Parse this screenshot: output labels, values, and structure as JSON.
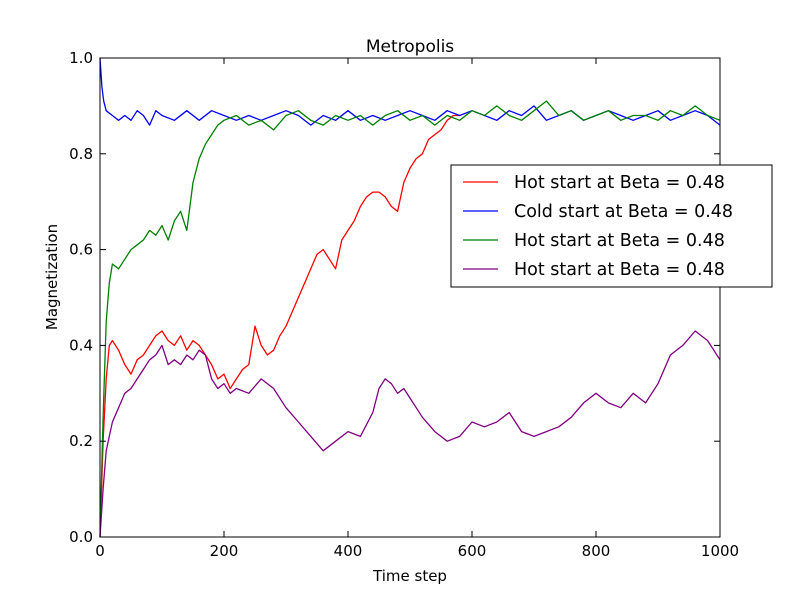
{
  "chart_data": {
    "type": "line",
    "title": "Metropolis",
    "xlabel": "Time step",
    "ylabel": "Magnetization",
    "xlim": [
      0,
      1000
    ],
    "ylim": [
      0.0,
      1.0
    ],
    "xticks": [
      0,
      200,
      400,
      600,
      800,
      1000
    ],
    "yticks": [
      0.0,
      0.2,
      0.4,
      0.6,
      0.8,
      1.0
    ],
    "xtick_labels": [
      "0",
      "200",
      "400",
      "600",
      "800",
      "1000"
    ],
    "ytick_labels": [
      "0.0",
      "0.2",
      "0.4",
      "0.6",
      "0.8",
      "1.0"
    ],
    "grid": false,
    "legend_position": "upper-right",
    "series": [
      {
        "name": "Hot start at Beta = 0.48",
        "color": "#ff0000",
        "x": [
          0,
          5,
          10,
          15,
          20,
          30,
          40,
          50,
          60,
          70,
          80,
          90,
          100,
          110,
          120,
          130,
          140,
          150,
          160,
          170,
          180,
          190,
          200,
          210,
          220,
          230,
          240,
          250,
          260,
          270,
          280,
          290,
          300,
          310,
          320,
          330,
          340,
          350,
          360,
          370,
          380,
          390,
          400,
          410,
          420,
          430,
          440,
          450,
          460,
          470,
          480,
          490,
          500,
          510,
          520,
          530,
          540,
          550,
          560,
          570,
          580
        ],
        "y": [
          0.0,
          0.2,
          0.33,
          0.4,
          0.41,
          0.39,
          0.36,
          0.34,
          0.37,
          0.38,
          0.4,
          0.42,
          0.43,
          0.41,
          0.4,
          0.42,
          0.39,
          0.41,
          0.4,
          0.38,
          0.36,
          0.33,
          0.34,
          0.31,
          0.33,
          0.35,
          0.36,
          0.44,
          0.4,
          0.38,
          0.39,
          0.42,
          0.44,
          0.47,
          0.5,
          0.53,
          0.56,
          0.59,
          0.6,
          0.58,
          0.56,
          0.62,
          0.64,
          0.66,
          0.69,
          0.71,
          0.72,
          0.72,
          0.71,
          0.69,
          0.68,
          0.74,
          0.77,
          0.79,
          0.8,
          0.83,
          0.84,
          0.85,
          0.87,
          0.88,
          0.88
        ]
      },
      {
        "name": "Cold start at Beta = 0.48",
        "color": "#0000ff",
        "x": [
          0,
          3,
          6,
          10,
          20,
          30,
          40,
          50,
          60,
          70,
          80,
          90,
          100,
          120,
          140,
          160,
          180,
          200,
          220,
          240,
          260,
          280,
          300,
          320,
          340,
          360,
          380,
          400,
          420,
          440,
          460,
          480,
          500,
          520,
          540,
          560,
          580,
          600,
          620,
          640,
          660,
          680,
          700,
          720,
          740,
          760,
          780,
          800,
          820,
          840,
          860,
          880,
          900,
          920,
          940,
          960,
          980,
          1000
        ],
        "y": [
          1.0,
          0.94,
          0.91,
          0.89,
          0.88,
          0.87,
          0.88,
          0.87,
          0.89,
          0.88,
          0.86,
          0.89,
          0.88,
          0.87,
          0.89,
          0.87,
          0.89,
          0.88,
          0.87,
          0.88,
          0.87,
          0.88,
          0.89,
          0.88,
          0.86,
          0.88,
          0.87,
          0.89,
          0.87,
          0.88,
          0.87,
          0.88,
          0.89,
          0.88,
          0.87,
          0.89,
          0.88,
          0.89,
          0.88,
          0.87,
          0.89,
          0.88,
          0.9,
          0.87,
          0.88,
          0.89,
          0.87,
          0.88,
          0.89,
          0.88,
          0.87,
          0.88,
          0.89,
          0.87,
          0.88,
          0.89,
          0.88,
          0.86
        ]
      },
      {
        "name": "Hot start at Beta = 0.48",
        "color": "#008000",
        "x": [
          0,
          5,
          10,
          15,
          20,
          30,
          40,
          50,
          60,
          70,
          80,
          90,
          100,
          110,
          120,
          130,
          140,
          150,
          160,
          170,
          180,
          190,
          200,
          220,
          240,
          260,
          280,
          300,
          320,
          340,
          360,
          380,
          400,
          420,
          440,
          460,
          480,
          500,
          520,
          540,
          560,
          580,
          600,
          620,
          640,
          660,
          680,
          700,
          720,
          740,
          760,
          780,
          800,
          820,
          840,
          860,
          880,
          900,
          920,
          940,
          960,
          980,
          1000
        ],
        "y": [
          0.0,
          0.25,
          0.45,
          0.53,
          0.57,
          0.56,
          0.58,
          0.6,
          0.61,
          0.62,
          0.64,
          0.63,
          0.65,
          0.62,
          0.66,
          0.68,
          0.64,
          0.74,
          0.79,
          0.82,
          0.84,
          0.86,
          0.87,
          0.88,
          0.86,
          0.87,
          0.85,
          0.88,
          0.89,
          0.87,
          0.86,
          0.88,
          0.87,
          0.88,
          0.86,
          0.88,
          0.89,
          0.87,
          0.88,
          0.86,
          0.88,
          0.87,
          0.89,
          0.88,
          0.9,
          0.88,
          0.87,
          0.89,
          0.91,
          0.88,
          0.89,
          0.87,
          0.88,
          0.89,
          0.87,
          0.88,
          0.88,
          0.87,
          0.89,
          0.88,
          0.9,
          0.88,
          0.87
        ]
      },
      {
        "name": "Hot start at Beta = 0.48",
        "color": "#800080",
        "x": [
          0,
          5,
          10,
          20,
          30,
          40,
          50,
          60,
          70,
          80,
          90,
          100,
          110,
          120,
          130,
          140,
          150,
          160,
          170,
          180,
          190,
          200,
          210,
          220,
          240,
          260,
          280,
          300,
          320,
          340,
          360,
          380,
          400,
          420,
          440,
          450,
          460,
          470,
          480,
          490,
          500,
          510,
          520,
          540,
          560,
          580,
          600,
          620,
          640,
          660,
          680,
          700,
          720,
          740,
          760,
          780,
          800,
          820,
          840,
          860,
          880,
          900,
          920,
          940,
          960,
          980,
          1000
        ],
        "y": [
          0.0,
          0.1,
          0.18,
          0.24,
          0.27,
          0.3,
          0.31,
          0.33,
          0.35,
          0.37,
          0.38,
          0.4,
          0.36,
          0.37,
          0.36,
          0.38,
          0.37,
          0.39,
          0.38,
          0.33,
          0.31,
          0.32,
          0.3,
          0.31,
          0.3,
          0.33,
          0.31,
          0.27,
          0.24,
          0.21,
          0.18,
          0.2,
          0.22,
          0.21,
          0.26,
          0.31,
          0.33,
          0.32,
          0.3,
          0.31,
          0.29,
          0.27,
          0.25,
          0.22,
          0.2,
          0.21,
          0.24,
          0.23,
          0.24,
          0.26,
          0.22,
          0.21,
          0.22,
          0.23,
          0.25,
          0.28,
          0.3,
          0.28,
          0.27,
          0.3,
          0.28,
          0.32,
          0.38,
          0.4,
          0.43,
          0.41,
          0.37
        ]
      }
    ]
  }
}
